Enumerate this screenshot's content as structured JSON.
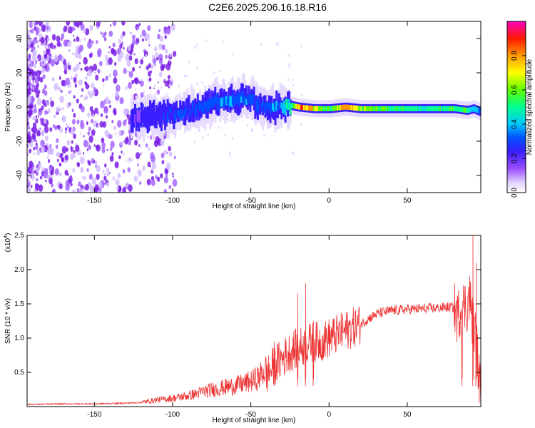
{
  "title": "C2E6.2025.206.16.18.R16",
  "colors": {
    "snr_line": "#ee3030",
    "scatter_dot": "#7a1ee6",
    "axis": "#000000"
  },
  "chart_data": [
    {
      "type": "heatmap",
      "xlabel": "Height of straight line (km)",
      "ylabel": "Frequency (Hz)",
      "xlim": [
        -193,
        97
      ],
      "ylim": [
        -50,
        50
      ],
      "xticks": [
        -150,
        -100,
        -50,
        0,
        50
      ],
      "yticks": [
        -40,
        -20,
        0,
        20,
        40
      ],
      "colorbar": {
        "label": "Normalized spectral amplitude",
        "range": [
          0,
          1
        ],
        "ticks": [
          "0.0",
          "0.2",
          "0.4",
          "0.6",
          "0.8"
        ],
        "colormap": [
          "#ffffff",
          "#d0b8ff",
          "#7a1ee6",
          "#0000ff",
          "#00ccff",
          "#00ff66",
          "#aaff00",
          "#ffff00",
          "#ff9900",
          "#ff0000",
          "#ff00aa"
        ]
      },
      "ridge": {
        "x": [
          -127,
          -110,
          -95,
          -85,
          -75,
          -65,
          -55,
          -50,
          -45,
          -38,
          -30,
          -25,
          -20,
          -10,
          0,
          10,
          20,
          40,
          60,
          80,
          88,
          92,
          97
        ],
        "y": [
          -6,
          -5,
          -3,
          -1,
          3,
          3,
          5,
          4,
          0,
          -1,
          0,
          1,
          0,
          -1,
          -1,
          0,
          -1,
          -1,
          -1,
          -1,
          -2,
          -1,
          -3
        ],
        "peak_amplitude": [
          0.25,
          0.3,
          0.35,
          0.35,
          0.4,
          0.4,
          0.4,
          0.35,
          0.35,
          0.4,
          0.45,
          0.55,
          0.9,
          0.8,
          0.6,
          0.9,
          0.7,
          0.6,
          0.55,
          0.6,
          0.6,
          0.5,
          0.4
        ]
      }
    },
    {
      "type": "line",
      "xlabel": "Height of straight line (km)",
      "ylabel": "SNR (10 * v/v)",
      "ymultiplier": "(x10",
      "yexponent": "4",
      "yexponent_close": ")",
      "xlim": [
        -193,
        97
      ],
      "ylim": [
        0,
        2.5
      ],
      "xticks": [
        -150,
        -100,
        -50,
        0,
        50
      ],
      "yticks": [
        "0.5",
        "1.0",
        "1.5",
        "2.0",
        "2.5"
      ],
      "series": [
        {
          "x": [
            -193,
            -170,
            -150,
            -130,
            -120,
            -110,
            -100,
            -90,
            -80,
            -70,
            -60,
            -50,
            -45,
            -40,
            -35,
            -30,
            -25,
            -20,
            -15,
            -10,
            -5,
            0,
            5,
            10,
            15,
            20,
            25,
            30,
            35,
            40,
            50,
            60,
            70,
            75,
            80,
            82,
            85,
            88,
            90,
            92,
            94,
            96,
            97
          ],
          "y": [
            0.02,
            0.03,
            0.03,
            0.04,
            0.05,
            0.08,
            0.1,
            0.13,
            0.18,
            0.22,
            0.25,
            0.3,
            0.35,
            0.45,
            0.6,
            0.7,
            0.8,
            0.85,
            0.9,
            0.95,
            0.95,
            1.0,
            1.05,
            1.1,
            1.15,
            1.2,
            1.28,
            1.35,
            1.38,
            1.4,
            1.42,
            1.43,
            1.44,
            1.45,
            1.45,
            1.3,
            1.5,
            1.45,
            1.6,
            1.2,
            1.0,
            0.4,
            0.1
          ],
          "spikes": [
            {
              "x": -35,
              "y": 0.95
            },
            {
              "x": -20,
              "y": 1.65
            },
            {
              "x": -15,
              "y": 1.8
            },
            {
              "x": -10,
              "y": 1.25
            },
            {
              "x": 85,
              "y": 0.68
            },
            {
              "x": 92,
              "y": 2.5
            },
            {
              "x": 94,
              "y": 2.1
            },
            {
              "x": 96,
              "y": 0.05
            }
          ]
        }
      ]
    }
  ]
}
